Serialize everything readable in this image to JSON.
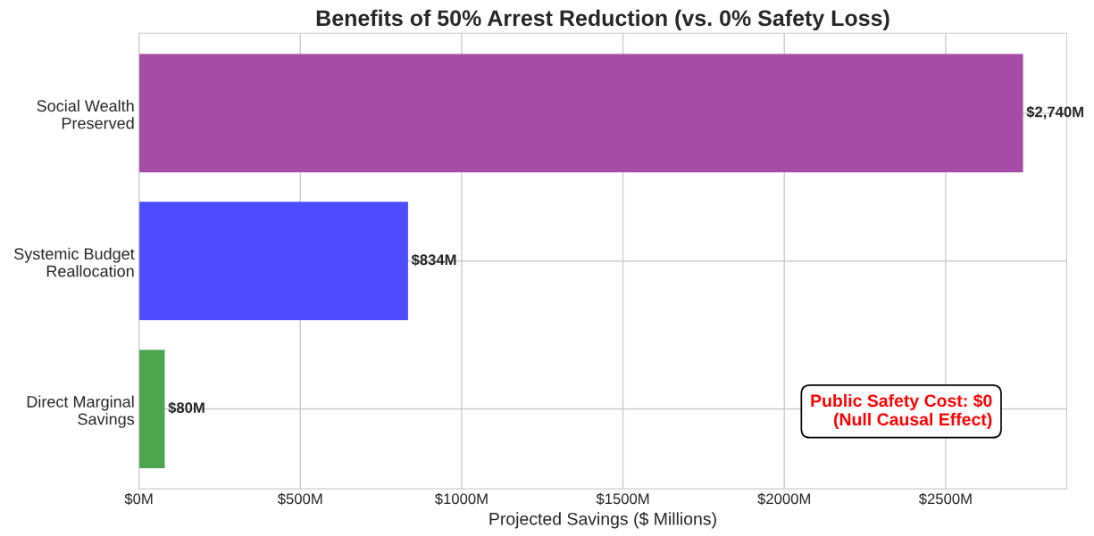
{
  "chart_data": {
    "type": "bar",
    "orientation": "horizontal",
    "title": "Benefits of 50% Arrest Reduction (vs. 0% Safety Loss)",
    "xlabel": "Projected Savings ($ Millions)",
    "categories": [
      "Social Wealth\nPreserved",
      "Systemic Budget\nReallocation",
      "Direct Marginal\nSavings"
    ],
    "values": [
      2740,
      834,
      80
    ],
    "colors": [
      "#a64ca6",
      "#4d4dff",
      "#4da64d"
    ],
    "value_labels": [
      "$2,740M",
      "$834M",
      "$80M"
    ],
    "xlim": [
      0,
      2875
    ],
    "xticks": [
      {
        "value": 0,
        "label": "$0M"
      },
      {
        "value": 500,
        "label": "$500M"
      },
      {
        "value": 1000,
        "label": "$1000M"
      },
      {
        "value": 1500,
        "label": "$1500M"
      },
      {
        "value": 2000,
        "label": "$2000M"
      },
      {
        "value": 2500,
        "label": "$2500M"
      }
    ],
    "grid": true,
    "annotations": [
      "Public Safety Cost: $0\n(Null Causal Effect)"
    ]
  }
}
